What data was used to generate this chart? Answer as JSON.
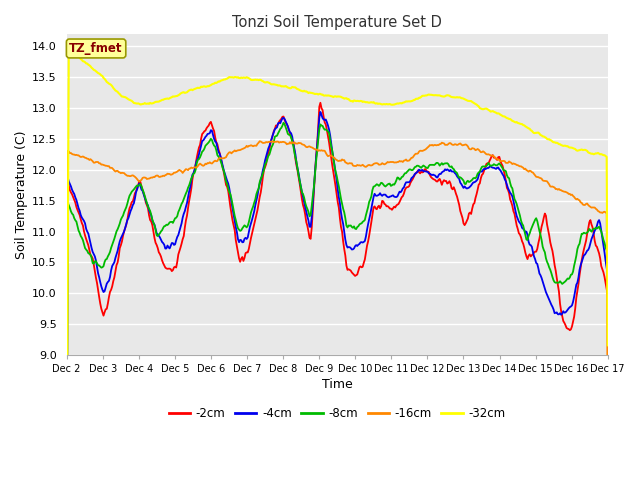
{
  "title": "Tonzi Soil Temperature Set D",
  "xlabel": "Time",
  "ylabel": "Soil Temperature (C)",
  "ylim": [
    9.0,
    14.2
  ],
  "yticks": [
    9.0,
    9.5,
    10.0,
    10.5,
    11.0,
    11.5,
    12.0,
    12.5,
    13.0,
    13.5,
    14.0
  ],
  "xtick_labels": [
    "Dec 2",
    "Dec 3",
    "Dec 4",
    "Dec 5",
    "Dec 6",
    "Dec 7",
    "Dec 8",
    "Dec 9",
    "Dec 10",
    "Dec 11",
    "Dec 12",
    "Dec 13",
    "Dec 14",
    "Dec 15",
    "Dec 16",
    "Dec 17"
  ],
  "legend_labels": [
    "-2cm",
    "-4cm",
    "-8cm",
    "-16cm",
    "-32cm"
  ],
  "line_colors": [
    "#ff0000",
    "#0000ee",
    "#00bb00",
    "#ff8800",
    "#ffff00"
  ],
  "line_widths": [
    1.3,
    1.3,
    1.3,
    1.3,
    1.5
  ],
  "annotation_text": "TZ_fmet",
  "annotation_color": "#880000",
  "annotation_bg": "#ffff99",
  "fig_bg": "#ffffff",
  "plot_bg": "#e8e8e8",
  "n_points": 500
}
